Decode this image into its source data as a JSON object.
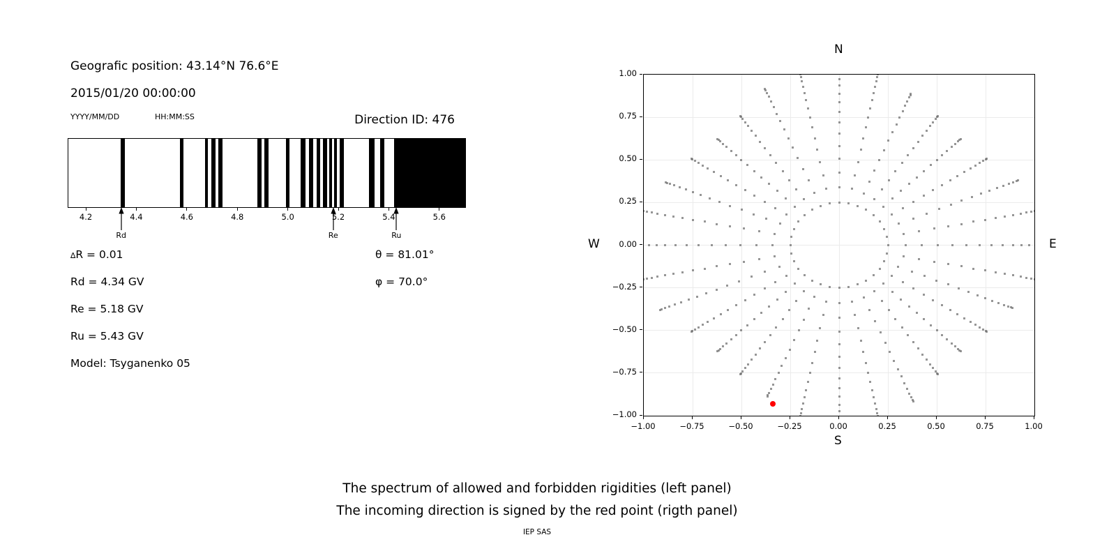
{
  "left_panel": {
    "geo_position": "Geografic position: 43.14°N 76.6°E",
    "datetime": "2015/01/20 00:00:00",
    "date_format_label": "YYYY/MM/DD",
    "time_format_label": "HH:MM:SS",
    "direction_id": "Direction ID: 476",
    "info": {
      "delta_symbol": "∆",
      "delta_r_rest": "R = 0.01",
      "rd": "Rd = 4.34 GV",
      "re": "Re = 5.18 GV",
      "ru": "Ru = 5.43 GV",
      "model": "Model: Tsyganenko 05",
      "theta_symbol": "θ",
      "theta_rest": " = 81.01°",
      "phi_symbol": "φ",
      "phi_rest": " = 70.0°"
    }
  },
  "caption": {
    "line1": "The spectrum of allowed and forbidden rigidities (left panel)",
    "line2": "The incoming direction is signed by the red point (rigth panel)",
    "credit": "IEP SAS"
  },
  "chart_data": [
    {
      "type": "bar",
      "name": "rigidity-spectrum",
      "description": "Barcode of allowed (white) and forbidden (black) rigidity bands in GV",
      "x_range": [
        4.128,
        5.7
      ],
      "x_ticks": [
        4.2,
        4.4,
        4.6,
        4.8,
        5.0,
        5.2,
        5.4,
        5.6
      ],
      "x_tick_labels": [
        "4.2",
        "4.4",
        "4.6",
        "4.8",
        "5.0",
        "5.2",
        "5.4",
        "5.6"
      ],
      "bar_color": "#000000",
      "forbidden_bands_gv": [
        [
          4.335,
          4.353
        ],
        [
          4.569,
          4.585
        ],
        [
          4.67,
          4.68
        ],
        [
          4.695,
          4.712
        ],
        [
          4.723,
          4.739
        ],
        [
          4.878,
          4.892
        ],
        [
          4.903,
          4.92
        ],
        [
          4.989,
          5.003
        ],
        [
          5.049,
          5.067
        ],
        [
          5.081,
          5.097
        ],
        [
          5.111,
          5.125
        ],
        [
          5.137,
          5.152
        ],
        [
          5.16,
          5.171
        ],
        [
          5.181,
          5.192
        ],
        [
          5.203,
          5.22
        ],
        [
          5.318,
          5.34
        ],
        [
          5.362,
          5.38
        ],
        [
          5.417,
          5.7
        ]
      ],
      "arrow_annotations": [
        {
          "label": "Rd",
          "x": 4.34
        },
        {
          "label": "Re",
          "x": 5.18
        },
        {
          "label": "Ru",
          "x": 5.43
        }
      ]
    },
    {
      "type": "scatter",
      "name": "incoming-direction-map",
      "description": "Asymptotic direction spokes; incoming direction marked by red point",
      "x_range": [
        -1.0,
        1.0
      ],
      "y_range": [
        -1.0,
        1.0
      ],
      "x_ticks": [
        -1.0,
        -0.75,
        -0.5,
        -0.25,
        0.0,
        0.25,
        0.5,
        0.75,
        1.0
      ],
      "x_tick_labels": [
        "−1.00",
        "−0.75",
        "−0.50",
        "−0.25",
        "0.00",
        "0.25",
        "0.50",
        "0.75",
        "1.00"
      ],
      "y_ticks": [
        1.0,
        0.75,
        0.5,
        0.25,
        0.0,
        -0.25,
        -0.5,
        -0.75,
        -1.0
      ],
      "y_tick_labels": [
        "1.00",
        "0.75",
        "0.50",
        "0.25",
        "0.00",
        "−0.25",
        "−0.50",
        "−0.75",
        "−1.00"
      ],
      "grid": true,
      "grid_color": "#ebebeb",
      "compass_labels": {
        "top": "N",
        "bottom": "S",
        "left": "W",
        "right": "E"
      },
      "dot_color": "rgba(110,110,110,0.72)",
      "dot_size_px": 3,
      "spokes": {
        "count": 32,
        "start_angle_deg": 0,
        "step_deg": 11.25,
        "inner_radius": 0.25,
        "dots_per_spoke": 16,
        "tip_bunch_exponent": 1.7,
        "clip_radius_xy": 1.0,
        "tip_radius_by_class_deg": {
          "0": 1.06,
          "11.25": 1.03,
          "22.5": 0.99,
          "33.75": 0.91,
          "45": 0.88,
          "56.25": 0.91,
          "67.5": 0.96,
          "78.75": 1.03
        }
      },
      "red_point": {
        "x": -0.34,
        "y": -0.93,
        "color": "#ff0000",
        "meaning": "incoming direction"
      }
    }
  ]
}
